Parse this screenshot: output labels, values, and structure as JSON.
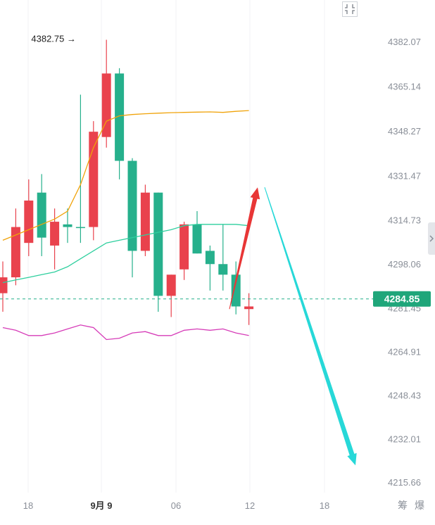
{
  "chart_data": {
    "type": "candlestick",
    "y_axis": {
      "ticks": [
        "4382.07",
        "4365.14",
        "4348.27",
        "4331.47",
        "4314.73",
        "4298.06",
        "4281.45",
        "4264.91",
        "4248.43",
        "4232.01",
        "4215.66"
      ],
      "range": [
        4211.5,
        4390.0
      ]
    },
    "x_axis": {
      "ticks": [
        {
          "label": "18",
          "bold": false
        },
        {
          "label": "9月 9",
          "bold": true
        },
        {
          "label": "06",
          "bold": false
        },
        {
          "label": "12",
          "bold": false
        },
        {
          "label": "18",
          "bold": false
        }
      ]
    },
    "current_price": "4284.85",
    "high_annotation": "4382.75",
    "candles": [
      {
        "o": 4287.0,
        "h": 4299.0,
        "l": 4280.0,
        "c": 4293.0
      },
      {
        "o": 4293.0,
        "h": 4319.0,
        "l": 4290.0,
        "c": 4312.0
      },
      {
        "o": 4306.0,
        "h": 4330.0,
        "l": 4301.0,
        "c": 4322.0
      },
      {
        "o": 4325.0,
        "h": 4332.0,
        "l": 4301.0,
        "c": 4308.0
      },
      {
        "o": 4305.0,
        "h": 4319.0,
        "l": 4296.0,
        "c": 4314.0
      },
      {
        "o": 4313.0,
        "h": 4319.0,
        "l": 4306.0,
        "c": 4312.0
      },
      {
        "o": 4312.0,
        "h": 4362.0,
        "l": 4306.0,
        "c": 4312.0
      },
      {
        "o": 4312.0,
        "h": 4352.0,
        "l": 4307.0,
        "c": 4348.0
      },
      {
        "o": 4346.0,
        "h": 4382.75,
        "l": 4342.0,
        "c": 4370.0
      },
      {
        "o": 4370.0,
        "h": 4372.0,
        "l": 4330.0,
        "c": 4337.0
      },
      {
        "o": 4337.0,
        "h": 4338.0,
        "l": 4293.0,
        "c": 4303.0
      },
      {
        "o": 4303.0,
        "h": 4328.0,
        "l": 4301.0,
        "c": 4325.0
      },
      {
        "o": 4325.0,
        "h": 4325.0,
        "l": 4280.0,
        "c": 4286.0
      },
      {
        "o": 4286.0,
        "h": 4294.0,
        "l": 4278.0,
        "c": 4294.0
      },
      {
        "o": 4296.0,
        "h": 4314.0,
        "l": 4292.0,
        "c": 4313.0
      },
      {
        "o": 4313.0,
        "h": 4318.0,
        "l": 4302.0,
        "c": 4302.0
      },
      {
        "o": 4303.0,
        "h": 4305.0,
        "l": 4288.0,
        "c": 4298.0
      },
      {
        "o": 4298.0,
        "h": 4313.0,
        "l": 4288.0,
        "c": 4294.0
      },
      {
        "o": 4294.0,
        "h": 4299.0,
        "l": 4279.0,
        "c": 4282.0
      },
      {
        "o": 4281.0,
        "h": 4287.0,
        "l": 4275.0,
        "c": 4282.0
      }
    ],
    "ma_long": [
      4307,
      4309,
      4311,
      4313,
      4315,
      4318,
      4328,
      4342,
      4352,
      4354,
      4354.5,
      4354.8,
      4355,
      4355.2,
      4355.3,
      4355.4,
      4355.5,
      4355.3,
      4355.7,
      4356
    ],
    "ma_short": [
      4291,
      4292,
      4293,
      4294,
      4295,
      4297,
      4300,
      4303,
      4306,
      4307,
      4308,
      4309,
      4310,
      4311,
      4312.5,
      4313,
      4313,
      4313,
      4313,
      4312.5
    ],
    "oscillator": [
      4274,
      4273,
      4271,
      4271,
      4272,
      4273.5,
      4275,
      4274,
      4269.5,
      4270,
      4272,
      4272.5,
      4271,
      4271,
      4273,
      4273.5,
      4273,
      4273.5,
      4272,
      4271
    ],
    "forecast_up": {
      "from": 4281.0,
      "to": 4327.0
    },
    "forecast_down": {
      "from": 4327.0,
      "to": 4222.0
    },
    "colors": {
      "up": "#e9424d",
      "down": "#26b08c",
      "ma_long": "#f0a30a",
      "ma_short": "#2ecf9e",
      "oscillator": "#d63cb8",
      "arrow_up": "#e83636",
      "arrow_down": "#27d8d8",
      "price_label": "#1fa67a"
    }
  },
  "right_labels": [
    "筹",
    "爆"
  ],
  "ui": {
    "corner_icon": "collapse-icon",
    "side_icon": "chevron-right-icon"
  }
}
